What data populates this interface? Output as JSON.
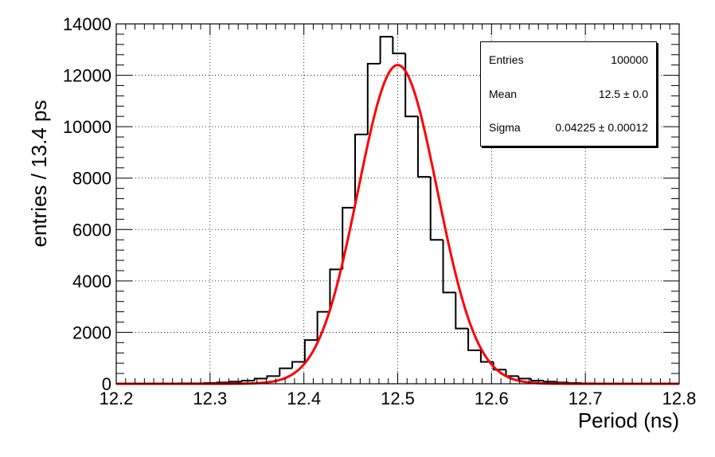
{
  "chart_data": {
    "type": "histogram",
    "xlabel": "Period (ns)",
    "ylabel": "entries / 13.4 ps",
    "xlim": [
      12.2,
      12.8
    ],
    "ylim": [
      0,
      14000
    ],
    "x_ticks": [
      "12.2",
      "12.3",
      "12.4",
      "12.5",
      "12.6",
      "12.7",
      "12.8"
    ],
    "y_ticks": [
      "0",
      "2000",
      "4000",
      "6000",
      "8000",
      "10000",
      "12000",
      "14000"
    ],
    "grid": true,
    "bin_edges": [
      12.2,
      12.2134,
      12.2268,
      12.2402,
      12.2536,
      12.267,
      12.2804,
      12.2938,
      12.3072,
      12.3206,
      12.334,
      12.3474,
      12.3608,
      12.3742,
      12.3876,
      12.401,
      12.4144,
      12.4278,
      12.4412,
      12.4546,
      12.468,
      12.4814,
      12.4948,
      12.5082,
      12.5216,
      12.535,
      12.5484,
      12.5618,
      12.5752,
      12.5886,
      12.602,
      12.6154,
      12.6288,
      12.6422,
      12.6556,
      12.669,
      12.6824,
      12.6958,
      12.7092,
      12.7226,
      12.736,
      12.7494,
      12.7628,
      12.7762,
      12.7896,
      12.8
    ],
    "counts": [
      0,
      0,
      10,
      10,
      10,
      20,
      20,
      30,
      50,
      80,
      120,
      200,
      300,
      600,
      850,
      1700,
      2800,
      4450,
      6850,
      9700,
      12450,
      13500,
      12850,
      10400,
      8050,
      5600,
      3550,
      2150,
      1300,
      850,
      550,
      300,
      200,
      120,
      80,
      50,
      30,
      20,
      10,
      10,
      0,
      0,
      0,
      0,
      0
    ],
    "fit": {
      "type": "gaussian",
      "amplitude": 12400,
      "mean": 12.5,
      "sigma": 0.04225,
      "color": "#ff0000"
    },
    "histogram_color": "#000000",
    "stats": {
      "entries_label": "Entries",
      "entries_value": "100000",
      "mean_label": "Mean",
      "mean_value": "12.5 ± 0.0",
      "sigma_label": "Sigma",
      "sigma_value": "0.04225 ± 0.00012"
    }
  }
}
